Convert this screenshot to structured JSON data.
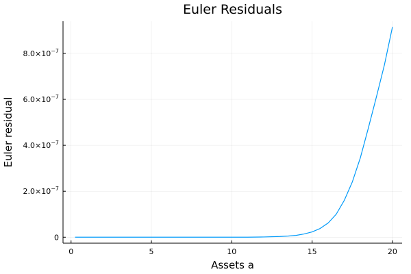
{
  "chart_data": {
    "type": "line",
    "title": "Euler Residuals",
    "xlabel": "Assets a",
    "ylabel": "Euler residual",
    "xlim": [
      -0.5,
      20.6
    ],
    "ylim": [
      -2.6e-08,
      9.4e-07
    ],
    "x_ticks": [
      {
        "value": 0,
        "label": "0"
      },
      {
        "value": 5,
        "label": "5"
      },
      {
        "value": 10,
        "label": "10"
      },
      {
        "value": 15,
        "label": "15"
      },
      {
        "value": 20,
        "label": "20"
      }
    ],
    "y_ticks": [
      {
        "value": 0,
        "label": "0",
        "exp": ""
      },
      {
        "value": 2e-07,
        "label": "2.0×10",
        "exp": "−7"
      },
      {
        "value": 4e-07,
        "label": "4.0×10",
        "exp": "−7"
      },
      {
        "value": 6e-07,
        "label": "6.0×10",
        "exp": "−7"
      },
      {
        "value": 8e-07,
        "label": "8.0×10",
        "exp": "−7"
      }
    ],
    "grid": true,
    "legend": "none",
    "series": [
      {
        "color": "#009af9",
        "x": [
          0.25,
          2,
          4,
          6,
          8,
          10,
          11,
          12,
          13,
          13.5,
          14,
          14.5,
          15,
          15.5,
          16,
          16.5,
          17,
          17.5,
          18,
          18.5,
          19,
          19.5,
          20
        ],
        "y": [
          0,
          0,
          0,
          0,
          0,
          0,
          0,
          1e-09,
          3e-09,
          5e-09,
          8e-09,
          1.4e-08,
          2.3e-08,
          3.8e-08,
          6.2e-08,
          1e-07,
          1.6e-07,
          2.4e-07,
          3.45e-07,
          4.75e-07,
          6.1e-07,
          7.5e-07,
          9.15e-07
        ]
      }
    ]
  }
}
